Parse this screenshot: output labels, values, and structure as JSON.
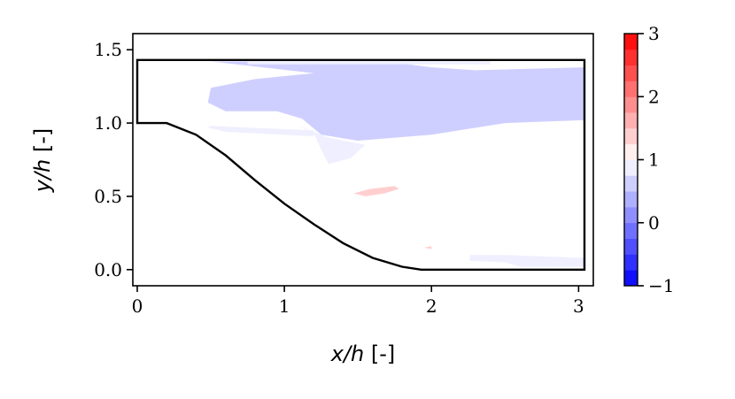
{
  "chart_data": {
    "type": "heatmap",
    "title": "",
    "xlabel_var": "x/h",
    "xlabel_unit": " [-]",
    "ylabel_var": "y/h",
    "ylabel_unit": " [-]",
    "xlim": [
      -0.03,
      3.1
    ],
    "ylim": [
      -0.11,
      1.61
    ],
    "xticks": [
      0,
      1,
      2,
      3
    ],
    "xtick_labels": [
      "0",
      "1",
      "2",
      "3"
    ],
    "yticks": [
      0.0,
      0.5,
      1.0,
      1.5
    ],
    "ytick_labels": [
      "0.0",
      "0.5",
      "1.0",
      "1.5"
    ],
    "colorbar": {
      "range": [
        -1,
        3
      ],
      "ticks": [
        -1,
        0,
        1,
        2,
        3
      ],
      "tick_labels": [
        "−1",
        "0",
        "1",
        "2",
        "3"
      ],
      "colormap": "bwr",
      "levels": 16
    },
    "domain_outline": {
      "hill_top_y": 1.0,
      "channel_top_y": 1.43,
      "domain_end_x": 3.04,
      "hill_crest_end_x": 0.2,
      "hill_foot_x": 1.93,
      "profile": [
        [
          0.0,
          1.0
        ],
        [
          0.2,
          1.0
        ],
        [
          0.4,
          0.92
        ],
        [
          0.6,
          0.78
        ],
        [
          0.8,
          0.61
        ],
        [
          1.0,
          0.45
        ],
        [
          1.2,
          0.31
        ],
        [
          1.4,
          0.18
        ],
        [
          1.6,
          0.08
        ],
        [
          1.8,
          0.02
        ],
        [
          1.93,
          0.0
        ],
        [
          3.04,
          0.0
        ]
      ]
    },
    "field_regions": [
      {
        "name": "upper-layer",
        "value": 0.7,
        "polygon": [
          [
            0.5,
            1.42
          ],
          [
            1.7,
            1.42
          ],
          [
            2.0,
            1.38
          ],
          [
            2.3,
            1.36
          ],
          [
            3.04,
            1.38
          ],
          [
            3.04,
            1.02
          ],
          [
            2.5,
            1.0
          ],
          [
            2.0,
            0.92
          ],
          [
            1.5,
            0.88
          ],
          [
            1.25,
            0.92
          ],
          [
            1.12,
            1.03
          ],
          [
            0.95,
            1.08
          ],
          [
            0.6,
            1.08
          ],
          [
            0.48,
            1.14
          ],
          [
            0.5,
            1.24
          ],
          [
            0.8,
            1.3
          ],
          [
            1.2,
            1.34
          ]
        ]
      },
      {
        "name": "top-strip",
        "value": 0.85,
        "polygon": [
          [
            0.75,
            1.43
          ],
          [
            2.4,
            1.43
          ],
          [
            2.4,
            1.4
          ],
          [
            0.75,
            1.4
          ]
        ]
      },
      {
        "name": "shear-streak",
        "value": 0.85,
        "polygon": [
          [
            0.5,
            0.98
          ],
          [
            1.2,
            0.95
          ],
          [
            1.2,
            0.91
          ],
          [
            0.6,
            0.94
          ],
          [
            0.48,
            0.97
          ]
        ]
      },
      {
        "name": "recirculation-band",
        "value": 0.8,
        "polygon": [
          [
            1.1,
            0.98
          ],
          [
            1.2,
            0.93
          ],
          [
            1.25,
            0.82
          ],
          [
            1.3,
            0.72
          ],
          [
            1.45,
            0.76
          ],
          [
            1.55,
            0.85
          ],
          [
            1.3,
            0.9
          ]
        ]
      },
      {
        "name": "positive-patch",
        "value": 1.4,
        "polygon": [
          [
            1.47,
            0.52
          ],
          [
            1.58,
            0.55
          ],
          [
            1.75,
            0.57
          ],
          [
            1.78,
            0.55
          ],
          [
            1.68,
            0.52
          ],
          [
            1.55,
            0.5
          ]
        ]
      },
      {
        "name": "wall-patch-small",
        "value": 1.3,
        "polygon": [
          [
            1.95,
            0.15
          ],
          [
            2.0,
            0.16
          ],
          [
            2.0,
            0.14
          ]
        ]
      },
      {
        "name": "near-wall-band",
        "value": 0.75,
        "polygon": [
          [
            2.26,
            0.1
          ],
          [
            2.5,
            0.1
          ],
          [
            3.04,
            0.08
          ],
          [
            3.04,
            0.02
          ],
          [
            2.6,
            0.02
          ],
          [
            2.5,
            0.05
          ],
          [
            2.26,
            0.06
          ]
        ]
      }
    ]
  }
}
